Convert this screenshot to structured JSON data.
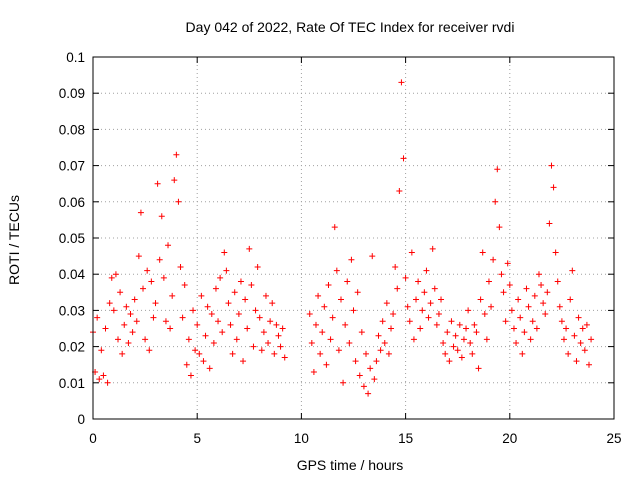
{
  "chart_data": {
    "type": "scatter",
    "title": "Day 042 of 2022, Rate Of TEC Index for receiver rvdi",
    "xlabel": "GPS time / hours",
    "ylabel": "ROTI / TECUs",
    "xlim": [
      0,
      25
    ],
    "ylim": [
      0,
      0.1
    ],
    "xticks": [
      "0",
      "5",
      "10",
      "15",
      "20",
      "25"
    ],
    "yticks": [
      "0",
      "0.01",
      "0.02",
      "0.03",
      "0.04",
      "0.05",
      "0.06",
      "0.07",
      "0.08",
      "0.09",
      "0.1"
    ],
    "grid": true,
    "marker": "+",
    "marker_color": "#ff0000",
    "series": [
      {
        "x": [
          0.0,
          0.1,
          0.2,
          0.3,
          0.4,
          0.5,
          0.6,
          0.7,
          0.8,
          0.9,
          1.0,
          1.1,
          1.2,
          1.3,
          1.4,
          1.5,
          1.6,
          1.7,
          1.8,
          1.9,
          2.0,
          2.1,
          2.2,
          2.3,
          2.4,
          2.5,
          2.6,
          2.7,
          2.8,
          2.9,
          3.0,
          3.1,
          3.2,
          3.3,
          3.4,
          3.5,
          3.6,
          3.7,
          3.8,
          3.9,
          4.0,
          4.1,
          4.2,
          4.3,
          4.4,
          4.5,
          4.6,
          4.7,
          4.8,
          4.9,
          5.0,
          5.1,
          5.2,
          5.3,
          5.4,
          5.5,
          5.6,
          5.7,
          5.8,
          5.9,
          6.0,
          6.1,
          6.2,
          6.3,
          6.4,
          6.5,
          6.6,
          6.7,
          6.8,
          6.9,
          7.0,
          7.1,
          7.2,
          7.3,
          7.4,
          7.5,
          7.6,
          7.7,
          7.8,
          7.9,
          8.0,
          8.1,
          8.2,
          8.3,
          8.4,
          8.5,
          8.6,
          8.7,
          8.8,
          8.9,
          9.0,
          9.1,
          9.2,
          10.4,
          10.5,
          10.6,
          10.7,
          10.8,
          10.9,
          11.0,
          11.1,
          11.2,
          11.3,
          11.4,
          11.5,
          11.6,
          11.7,
          11.8,
          11.9,
          12.0,
          12.1,
          12.2,
          12.3,
          12.4,
          12.5,
          12.6,
          12.7,
          12.8,
          12.9,
          13.0,
          13.1,
          13.2,
          13.3,
          13.4,
          13.5,
          13.6,
          13.7,
          13.8,
          13.9,
          14.0,
          14.1,
          14.2,
          14.3,
          14.4,
          14.5,
          14.6,
          14.7,
          14.8,
          14.9,
          15.0,
          15.1,
          15.2,
          15.3,
          15.4,
          15.5,
          15.6,
          15.7,
          15.8,
          15.9,
          16.0,
          16.1,
          16.2,
          16.3,
          16.4,
          16.5,
          16.6,
          16.7,
          16.8,
          16.9,
          17.0,
          17.1,
          17.2,
          17.3,
          17.4,
          17.5,
          17.6,
          17.7,
          17.8,
          17.9,
          18.0,
          18.1,
          18.2,
          18.3,
          18.4,
          18.5,
          18.6,
          18.7,
          18.8,
          18.9,
          19.0,
          19.1,
          19.2,
          19.3,
          19.4,
          19.5,
          19.6,
          19.7,
          19.8,
          19.9,
          20.0,
          20.1,
          20.2,
          20.3,
          20.4,
          20.5,
          20.6,
          20.7,
          20.8,
          20.9,
          21.0,
          21.1,
          21.2,
          21.3,
          21.4,
          21.5,
          21.6,
          21.7,
          21.8,
          21.9,
          22.0,
          22.1,
          22.2,
          22.3,
          22.4,
          22.5,
          22.6,
          22.7,
          22.8,
          22.9,
          23.0,
          23.1,
          23.2,
          23.3,
          23.4,
          23.5,
          23.6,
          23.7,
          23.8,
          23.9
        ],
        "y": [
          0.024,
          0.013,
          0.028,
          0.011,
          0.019,
          0.012,
          0.025,
          0.01,
          0.032,
          0.039,
          0.03,
          0.04,
          0.022,
          0.035,
          0.018,
          0.026,
          0.031,
          0.021,
          0.029,
          0.024,
          0.033,
          0.027,
          0.045,
          0.057,
          0.036,
          0.022,
          0.041,
          0.019,
          0.038,
          0.028,
          0.032,
          0.065,
          0.044,
          0.056,
          0.039,
          0.027,
          0.048,
          0.025,
          0.034,
          0.066,
          0.073,
          0.06,
          0.042,
          0.028,
          0.037,
          0.015,
          0.022,
          0.012,
          0.03,
          0.019,
          0.026,
          0.018,
          0.034,
          0.016,
          0.023,
          0.031,
          0.014,
          0.029,
          0.021,
          0.036,
          0.027,
          0.039,
          0.024,
          0.046,
          0.041,
          0.032,
          0.026,
          0.018,
          0.035,
          0.022,
          0.029,
          0.038,
          0.016,
          0.033,
          0.025,
          0.047,
          0.037,
          0.02,
          0.03,
          0.042,
          0.028,
          0.019,
          0.024,
          0.034,
          0.021,
          0.027,
          0.032,
          0.018,
          0.026,
          0.023,
          0.02,
          0.025,
          0.017,
          0.029,
          0.021,
          0.013,
          0.026,
          0.034,
          0.018,
          0.024,
          0.031,
          0.015,
          0.037,
          0.022,
          0.028,
          0.053,
          0.041,
          0.019,
          0.033,
          0.01,
          0.026,
          0.038,
          0.021,
          0.044,
          0.03,
          0.016,
          0.035,
          0.012,
          0.024,
          0.009,
          0.018,
          0.007,
          0.014,
          0.045,
          0.011,
          0.016,
          0.023,
          0.019,
          0.027,
          0.021,
          0.032,
          0.018,
          0.025,
          0.029,
          0.042,
          0.036,
          0.063,
          0.093,
          0.072,
          0.039,
          0.031,
          0.027,
          0.046,
          0.022,
          0.033,
          0.038,
          0.025,
          0.03,
          0.035,
          0.041,
          0.028,
          0.032,
          0.047,
          0.036,
          0.026,
          0.029,
          0.033,
          0.021,
          0.018,
          0.024,
          0.016,
          0.027,
          0.02,
          0.023,
          0.019,
          0.026,
          0.017,
          0.022,
          0.025,
          0.03,
          0.021,
          0.018,
          0.026,
          0.024,
          0.014,
          0.033,
          0.046,
          0.029,
          0.022,
          0.038,
          0.031,
          0.044,
          0.06,
          0.069,
          0.053,
          0.04,
          0.035,
          0.027,
          0.043,
          0.037,
          0.03,
          0.025,
          0.021,
          0.033,
          0.028,
          0.018,
          0.024,
          0.036,
          0.031,
          0.022,
          0.027,
          0.034,
          0.025,
          0.04,
          0.037,
          0.032,
          0.029,
          0.035,
          0.054,
          0.07,
          0.064,
          0.046,
          0.038,
          0.031,
          0.027,
          0.022,
          0.025,
          0.018,
          0.033,
          0.041,
          0.023,
          0.016,
          0.028,
          0.021,
          0.025,
          0.019,
          0.026,
          0.015,
          0.022
        ]
      }
    ]
  }
}
